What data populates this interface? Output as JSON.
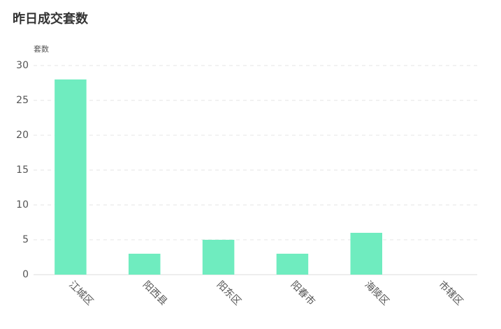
{
  "chart_data": {
    "type": "bar",
    "title": "昨日成交套数",
    "y_label": "套数",
    "categories": [
      "江城区",
      "阳西县",
      "阳东区",
      "阳春市",
      "海陵区",
      "市辖区"
    ],
    "values": [
      28,
      3,
      5,
      3,
      6,
      0
    ],
    "color": "#6fecbf",
    "ylim": [
      0,
      30
    ],
    "yticks": [
      0,
      5,
      10,
      15,
      20,
      25,
      30
    ],
    "grid": true
  }
}
